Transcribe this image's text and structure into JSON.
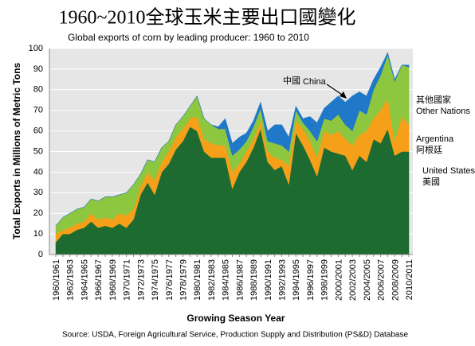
{
  "chart_data": {
    "type": "stacked_area",
    "title": "1960~2010全球玉米主要出口國變化",
    "subtitle": "Global exports of corn by leading producer: 1960 to 2010",
    "ylabel": "Total Exports in Millions of Metric Tons",
    "xlabel": "Growing Season Year",
    "source": "Source: USDA, Foreign Agricultural Service, Production Supply and Distribution (PS&D) Database",
    "categories": [
      "1960/1961",
      null,
      "1962/1963",
      null,
      "1964/1965",
      null,
      "1966/1967",
      null,
      "1968/1969",
      null,
      "1970/1971",
      null,
      "1972/1973",
      null,
      "1974/1975",
      null,
      "1976/1977",
      null,
      "1978/1979",
      null,
      "1980/1981",
      null,
      "1982/1983",
      null,
      "1984/1985",
      null,
      "1986/1987",
      null,
      "1988/1989",
      null,
      "1990/1991",
      null,
      "1992/1993",
      null,
      "1994/1995",
      null,
      "1996/1997",
      null,
      "1998/1999",
      null,
      "2000/2001",
      null,
      "2002/2003",
      null,
      "2004/2005",
      null,
      "2006/2007",
      null,
      "2008/2009",
      null,
      "2010/2011"
    ],
    "ylim": [
      0,
      100
    ],
    "yticks": [
      0,
      10,
      20,
      30,
      40,
      50,
      60,
      70,
      80,
      90,
      100
    ],
    "grid": true,
    "series": [
      {
        "name": "United States",
        "name_zh": "美國",
        "color": "#1d6b30",
        "values": [
          6,
          10,
          10,
          12,
          13,
          16,
          13,
          14,
          13,
          15,
          13,
          17,
          29,
          35,
          29,
          40,
          44,
          51,
          55,
          62,
          60,
          50,
          47,
          47,
          47,
          32,
          40,
          45,
          52,
          61,
          45,
          41,
          43,
          34,
          59,
          53,
          46,
          38,
          52,
          50,
          49,
          48,
          41,
          48,
          45,
          56,
          54,
          61,
          48,
          50,
          50
        ]
      },
      {
        "name": "Argentina",
        "name_zh": "阿根廷",
        "color": "#f6a01a",
        "values": [
          4,
          2,
          3,
          3,
          3,
          4,
          4,
          4,
          4,
          5,
          6,
          5,
          4,
          5,
          7,
          5,
          6,
          6,
          6,
          4,
          7,
          6,
          7,
          6,
          6,
          8,
          4,
          5,
          4,
          4,
          5,
          6,
          3,
          9,
          6,
          8,
          9,
          9,
          8,
          8,
          11,
          8,
          12,
          10,
          15,
          10,
          16,
          15,
          7,
          17,
          13
        ]
      },
      {
        "name": "Other Nations",
        "name_zh": "其他國家",
        "color": "#8dc63f",
        "values": [
          4,
          6,
          7,
          7,
          7,
          7,
          9,
          10,
          11,
          9,
          11,
          12,
          6,
          6,
          9,
          7,
          5,
          6,
          6,
          6,
          10,
          10,
          9,
          8,
          8,
          8,
          7,
          5,
          6,
          6,
          5,
          7,
          7,
          7,
          5,
          3,
          5,
          8,
          6,
          7,
          8,
          7,
          7,
          12,
          8,
          14,
          17,
          21,
          29,
          25,
          28
        ]
      },
      {
        "name": "China",
        "name_zh": "中國",
        "color": "#1f78c8",
        "values": [
          0,
          0,
          0,
          0,
          0,
          0,
          0,
          0,
          0,
          0,
          0,
          0,
          0,
          0,
          0,
          0,
          0,
          0,
          0,
          0,
          0,
          0,
          0,
          1,
          5,
          6,
          6,
          4,
          3,
          3,
          5,
          9,
          10,
          7,
          2,
          2,
          7,
          9,
          5,
          9,
          9,
          11,
          17,
          9,
          9,
          5,
          4,
          1,
          1,
          0,
          1
        ]
      }
    ]
  }
}
